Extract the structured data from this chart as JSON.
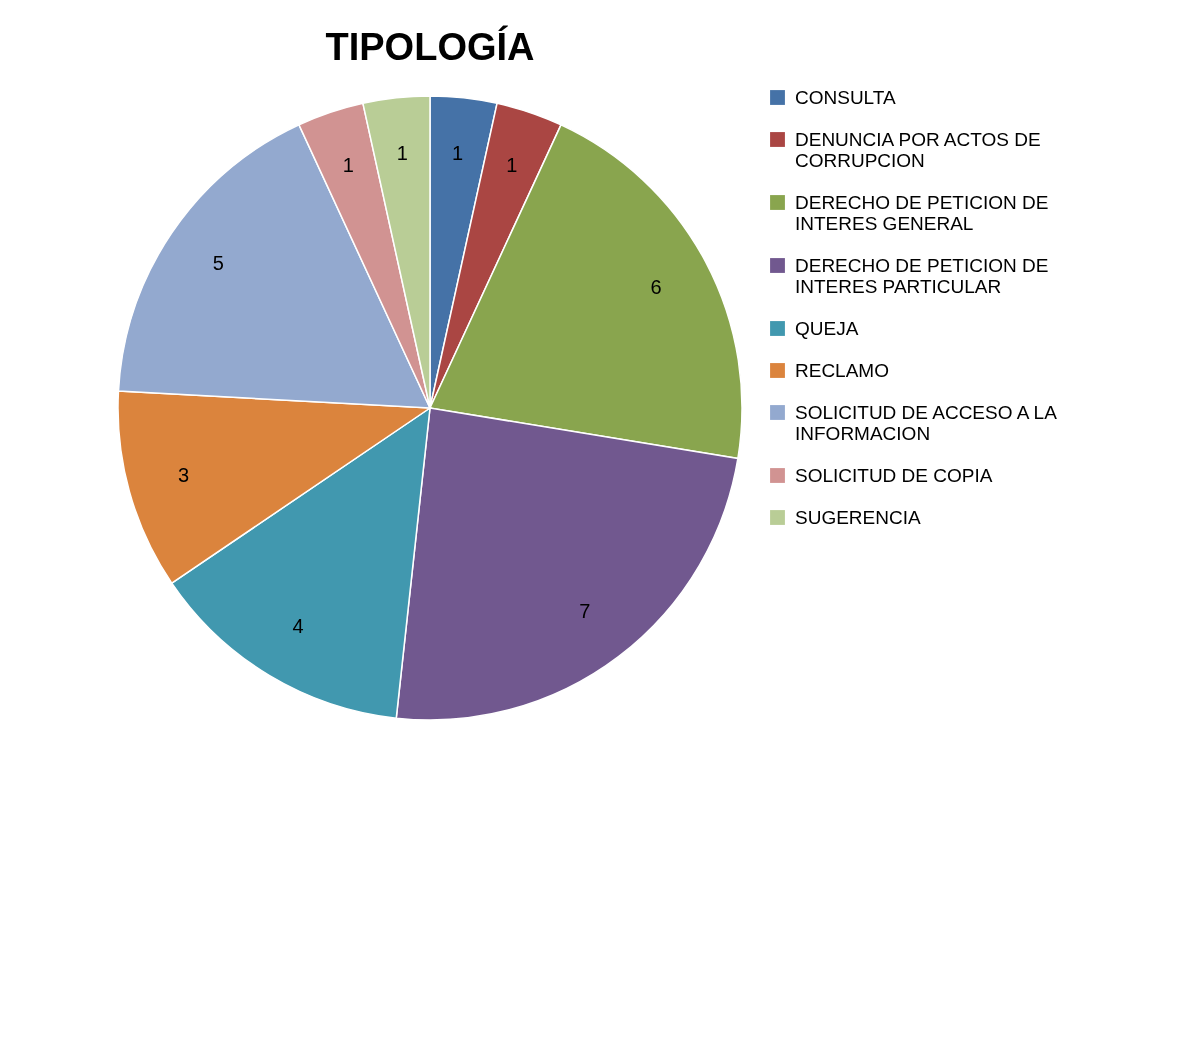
{
  "chart_data": {
    "type": "pie",
    "title": "TIPOLOGÍA",
    "categories": [
      "CONSULTA",
      "DENUNCIA POR ACTOS DE CORRUPCION",
      "DERECHO DE PETICION DE INTERES GENERAL",
      "DERECHO DE PETICION DE INTERES PARTICULAR",
      "QUEJA",
      "RECLAMO",
      "SOLICITUD DE ACCESO A LA INFORMACION",
      "SOLICITUD DE COPIA",
      "SUGERENCIA"
    ],
    "values": [
      1,
      1,
      6,
      7,
      4,
      3,
      5,
      1,
      1
    ],
    "colors": [
      "#4572a7",
      "#aa4643",
      "#89a54e",
      "#71588f",
      "#4198af",
      "#db843d",
      "#93a9cf",
      "#d19392",
      "#b9cd96"
    ],
    "data_labels": true,
    "legend": "right"
  }
}
